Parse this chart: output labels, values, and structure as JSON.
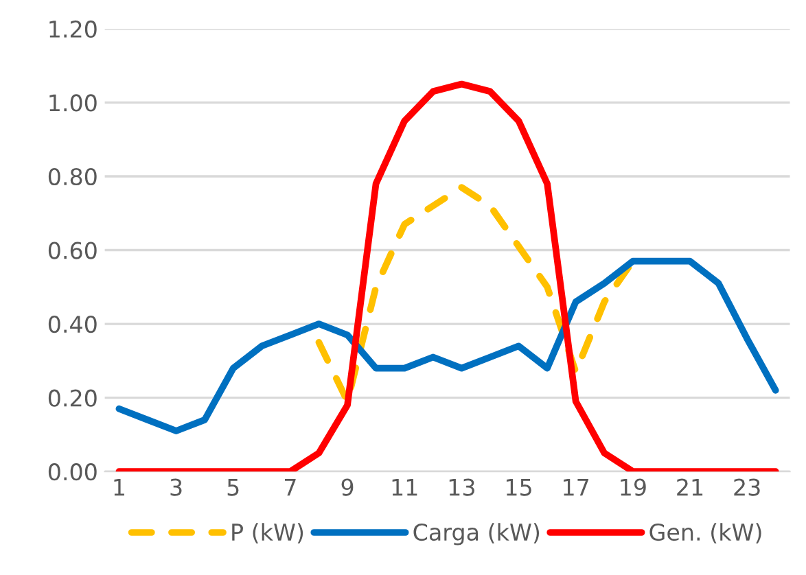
{
  "chart_data": {
    "type": "line",
    "categories": [
      "1",
      null,
      "3",
      null,
      "5",
      null,
      "7",
      null,
      "9",
      null,
      "11",
      null,
      "13",
      null,
      "15",
      null,
      "17",
      null,
      "19",
      null,
      "21",
      null,
      "23",
      null
    ],
    "series": [
      {
        "name": "P (kW)",
        "color": "#ffc000",
        "line_style": "dashed",
        "values": [
          null,
          null,
          null,
          null,
          null,
          null,
          null,
          0.35,
          0.19,
          0.5,
          0.67,
          0.72,
          0.77,
          0.72,
          0.61,
          0.5,
          0.27,
          0.46,
          0.57,
          null,
          null,
          null,
          null,
          null
        ]
      },
      {
        "name": "Carga (kW)",
        "color": "#0070c0",
        "line_style": "solid",
        "values": [
          0.17,
          0.14,
          0.11,
          0.14,
          0.28,
          0.34,
          0.37,
          0.4,
          0.37,
          0.28,
          0.28,
          0.31,
          0.28,
          0.31,
          0.34,
          0.28,
          0.46,
          0.51,
          0.57,
          0.57,
          0.57,
          0.51,
          0.36,
          0.22
        ]
      },
      {
        "name": "Gen. (kW)",
        "color": "#ff0000",
        "line_style": "solid",
        "values": [
          0,
          0,
          0,
          0,
          0,
          0,
          0,
          0.05,
          0.18,
          0.78,
          0.95,
          1.03,
          1.05,
          1.03,
          0.95,
          0.78,
          0.19,
          0.05,
          0,
          0,
          0,
          0,
          0,
          0
        ]
      }
    ],
    "ylim": [
      0,
      1.2
    ],
    "yticks": [
      {
        "value": 0,
        "label": "0.00"
      },
      {
        "value": 0.2,
        "label": "0.20"
      },
      {
        "value": 0.4,
        "label": "0.40"
      },
      {
        "value": 0.6,
        "label": "0.60"
      },
      {
        "value": 0.8,
        "label": "0.80"
      },
      {
        "value": 1.0,
        "label": "1.00"
      },
      {
        "value": 1.2,
        "label": "1.20"
      }
    ],
    "grid": "y",
    "legend": "bottom",
    "marker": "none"
  }
}
